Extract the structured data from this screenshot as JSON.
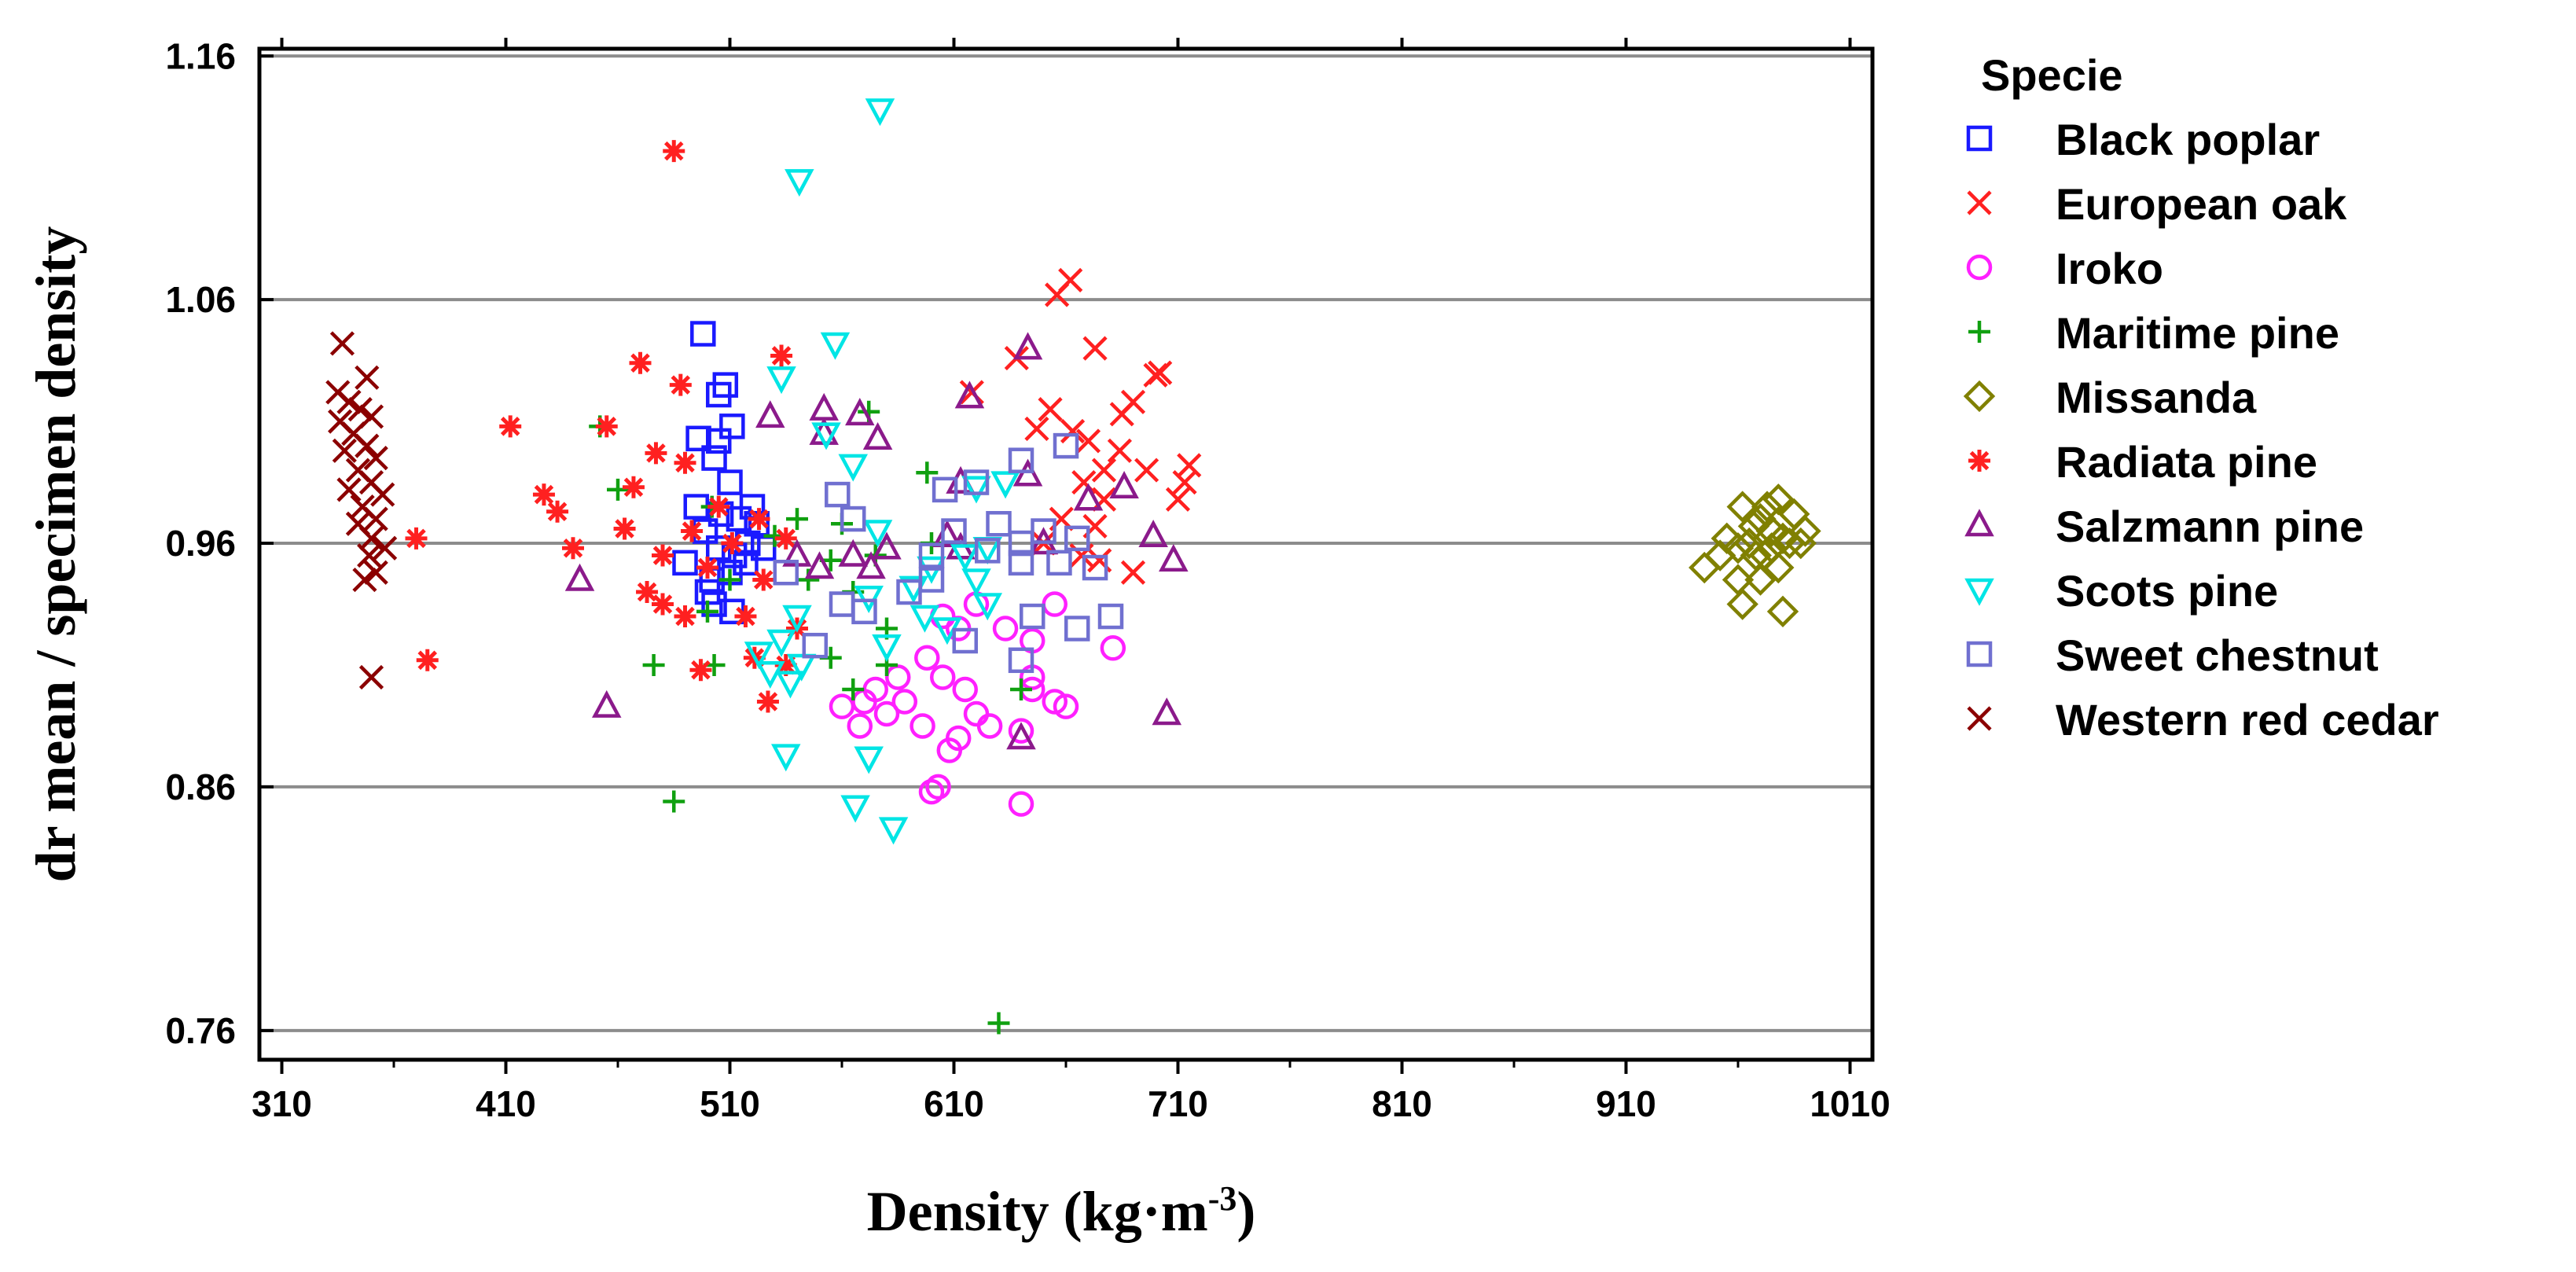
{
  "chart_data": {
    "type": "scatter",
    "title": "",
    "xlabel": "Density (kg·m",
    "xlabel_superscript": "-3",
    "xlabel_close": ")",
    "ylabel": "dr mean / specimen density",
    "xlim": [
      300,
      1020
    ],
    "ylim": [
      0.748,
      1.163
    ],
    "x_ticks": [
      310,
      410,
      510,
      610,
      710,
      810,
      910,
      1010
    ],
    "y_ticks": [
      0.76,
      0.86,
      0.96,
      1.06,
      1.16
    ],
    "x_tick_labels": [
      "310",
      "410",
      "510",
      "610",
      "710",
      "810",
      "910",
      "1010"
    ],
    "y_tick_labels": [
      "0.76",
      "0.86",
      "0.96",
      "1.06",
      "1.16"
    ],
    "horizontal_grid": true,
    "legend_title": "Specie",
    "legend_position": "right",
    "series": [
      {
        "name": "Black poplar",
        "marker": "square",
        "color": "#1a1aff",
        "points": [
          [
            498,
            1.046
          ],
          [
            505,
            1.021
          ],
          [
            508,
            1.025
          ],
          [
            496,
            1.003
          ],
          [
            511,
            1.008
          ],
          [
            505,
            1.002
          ],
          [
            503,
            0.995
          ],
          [
            510,
            0.985
          ],
          [
            495,
            0.975
          ],
          [
            506,
            0.972
          ],
          [
            514,
            0.97
          ],
          [
            520,
            0.975
          ],
          [
            499,
            0.965
          ],
          [
            505,
            0.958
          ],
          [
            512,
            0.955
          ],
          [
            518,
            0.96
          ],
          [
            522,
            0.968
          ],
          [
            490,
            0.952
          ],
          [
            502,
            0.945
          ],
          [
            510,
            0.948
          ],
          [
            517,
            0.952
          ],
          [
            525,
            0.958
          ],
          [
            503,
            0.935
          ],
          [
            511,
            0.932
          ],
          [
            500,
            0.94
          ]
        ]
      },
      {
        "name": "European oak",
        "marker": "x",
        "color": "#ff2020",
        "points": [
          [
            662,
            1.068
          ],
          [
            656,
            1.062
          ],
          [
            673,
            1.04
          ],
          [
            638,
            1.036
          ],
          [
            702,
            1.03
          ],
          [
            700,
            1.029
          ],
          [
            618,
            1.022
          ],
          [
            690,
            1.018
          ],
          [
            685,
            1.013
          ],
          [
            653,
            1.015
          ],
          [
            647,
            1.007
          ],
          [
            663,
            1.006
          ],
          [
            670,
            1.002
          ],
          [
            684,
            0.998
          ],
          [
            677,
            0.99
          ],
          [
            696,
            0.99
          ],
          [
            715,
            0.992
          ],
          [
            713,
            0.985
          ],
          [
            710,
            0.978
          ],
          [
            668,
            0.985
          ],
          [
            677,
            0.978
          ],
          [
            658,
            0.97
          ],
          [
            673,
            0.967
          ],
          [
            650,
            0.96
          ],
          [
            675,
            0.953
          ],
          [
            690,
            0.948
          ],
          [
            667,
            0.955
          ]
        ]
      },
      {
        "name": "Iroko",
        "marker": "circle",
        "color": "#ff20ff",
        "points": [
          [
            605,
            0.93
          ],
          [
            620,
            0.935
          ],
          [
            655,
            0.935
          ],
          [
            612,
            0.925
          ],
          [
            633,
            0.925
          ],
          [
            645,
            0.92
          ],
          [
            681,
            0.917
          ],
          [
            598,
            0.913
          ],
          [
            605,
            0.905
          ],
          [
            645,
            0.905
          ],
          [
            615,
            0.9
          ],
          [
            585,
            0.905
          ],
          [
            575,
            0.9
          ],
          [
            570,
            0.895
          ],
          [
            580,
            0.89
          ],
          [
            588,
            0.895
          ],
          [
            560,
            0.893
          ],
          [
            568,
            0.885
          ],
          [
            596,
            0.885
          ],
          [
            620,
            0.89
          ],
          [
            626,
            0.885
          ],
          [
            640,
            0.883
          ],
          [
            655,
            0.895
          ],
          [
            660,
            0.893
          ],
          [
            645,
            0.9
          ],
          [
            608,
            0.875
          ],
          [
            612,
            0.88
          ],
          [
            603,
            0.86
          ],
          [
            600,
            0.858
          ],
          [
            640,
            0.853
          ]
        ]
      },
      {
        "name": "Maritime pine",
        "marker": "plus",
        "color": "#10a010",
        "points": [
          [
            452,
            1.008
          ],
          [
            572,
            1.014
          ],
          [
            598,
            0.989
          ],
          [
            460,
            0.982
          ],
          [
            502,
            0.975
          ],
          [
            540,
            0.97
          ],
          [
            560,
            0.968
          ],
          [
            530,
            0.963
          ],
          [
            600,
            0.96
          ],
          [
            575,
            0.955
          ],
          [
            555,
            0.953
          ],
          [
            510,
            0.945
          ],
          [
            545,
            0.945
          ],
          [
            565,
            0.94
          ],
          [
            500,
            0.932
          ],
          [
            580,
            0.925
          ],
          [
            476,
            0.91
          ],
          [
            503,
            0.91
          ],
          [
            580,
            0.91
          ],
          [
            555,
            0.913
          ],
          [
            565,
            0.9
          ],
          [
            640,
            0.9
          ],
          [
            485,
            0.854
          ],
          [
            630,
            0.763
          ]
        ]
      },
      {
        "name": "Missanda",
        "marker": "diamond",
        "color": "#808000",
        "points": [
          [
            945,
            0.95
          ],
          [
            962,
            0.975
          ],
          [
            970,
            0.97
          ],
          [
            973,
            0.975
          ],
          [
            978,
            0.978
          ],
          [
            985,
            0.972
          ],
          [
            990,
            0.965
          ],
          [
            980,
            0.962
          ],
          [
            975,
            0.958
          ],
          [
            968,
            0.955
          ],
          [
            960,
            0.958
          ],
          [
            955,
            0.962
          ],
          [
            965,
            0.96
          ],
          [
            972,
            0.955
          ],
          [
            978,
            0.95
          ],
          [
            970,
            0.945
          ],
          [
            960,
            0.945
          ],
          [
            952,
            0.955
          ],
          [
            983,
            0.96
          ],
          [
            988,
            0.96
          ],
          [
            962,
            0.935
          ],
          [
            980,
            0.932
          ],
          [
            975,
            0.965
          ],
          [
            967,
            0.967
          ]
        ]
      },
      {
        "name": "Radiata pine",
        "marker": "asterisk",
        "color": "#ff2020",
        "points": [
          [
            485,
            1.121
          ],
          [
            533,
            1.037
          ],
          [
            470,
            1.034
          ],
          [
            488,
            1.025
          ],
          [
            412,
            1.008
          ],
          [
            455,
            1.008
          ],
          [
            477,
            0.997
          ],
          [
            490,
            0.993
          ],
          [
            427,
            0.98
          ],
          [
            467,
            0.983
          ],
          [
            433,
            0.973
          ],
          [
            505,
            0.975
          ],
          [
            523,
            0.97
          ],
          [
            535,
            0.962
          ],
          [
            370,
            0.962
          ],
          [
            463,
            0.966
          ],
          [
            493,
            0.965
          ],
          [
            511,
            0.96
          ],
          [
            440,
            0.958
          ],
          [
            480,
            0.955
          ],
          [
            500,
            0.95
          ],
          [
            525,
            0.945
          ],
          [
            473,
            0.94
          ],
          [
            480,
            0.935
          ],
          [
            490,
            0.93
          ],
          [
            517,
            0.93
          ],
          [
            540,
            0.925
          ],
          [
            375,
            0.912
          ],
          [
            497,
            0.908
          ],
          [
            521,
            0.913
          ],
          [
            535,
            0.91
          ],
          [
            527,
            0.895
          ]
        ]
      },
      {
        "name": "Salzmann pine",
        "marker": "triangle",
        "color": "#8b1a8b",
        "points": [
          [
            643,
            1.04
          ],
          [
            617,
            1.02
          ],
          [
            528,
            1.012
          ],
          [
            552,
            1.015
          ],
          [
            568,
            1.013
          ],
          [
            576,
            1.003
          ],
          [
            552,
            1.005
          ],
          [
            613,
            0.985
          ],
          [
            643,
            0.988
          ],
          [
            686,
            0.983
          ],
          [
            670,
            0.978
          ],
          [
            607,
            0.963
          ],
          [
            613,
            0.958
          ],
          [
            699,
            0.963
          ],
          [
            708,
            0.953
          ],
          [
            650,
            0.96
          ],
          [
            580,
            0.958
          ],
          [
            565,
            0.955
          ],
          [
            540,
            0.955
          ],
          [
            443,
            0.945
          ],
          [
            550,
            0.95
          ],
          [
            573,
            0.95
          ],
          [
            455,
            0.893
          ],
          [
            705,
            0.89
          ],
          [
            640,
            0.88
          ]
        ]
      },
      {
        "name": "Scots pine",
        "marker": "triangle-down",
        "color": "#00e5e5",
        "points": [
          [
            577,
            1.138
          ],
          [
            541,
            1.109
          ],
          [
            557,
            1.042
          ],
          [
            533,
            1.028
          ],
          [
            553,
            1.005
          ],
          [
            565,
            0.992
          ],
          [
            633,
            0.985
          ],
          [
            620,
            0.983
          ],
          [
            576,
            0.965
          ],
          [
            625,
            0.958
          ],
          [
            615,
            0.955
          ],
          [
            600,
            0.95
          ],
          [
            620,
            0.945
          ],
          [
            592,
            0.942
          ],
          [
            572,
            0.938
          ],
          [
            625,
            0.935
          ],
          [
            607,
            0.925
          ],
          [
            597,
            0.93
          ],
          [
            540,
            0.93
          ],
          [
            533,
            0.92
          ],
          [
            523,
            0.915
          ],
          [
            528,
            0.907
          ],
          [
            537,
            0.903
          ],
          [
            542,
            0.91
          ],
          [
            580,
            0.918
          ],
          [
            535,
            0.873
          ],
          [
            572,
            0.872
          ],
          [
            566,
            0.852
          ],
          [
            583,
            0.843
          ]
        ]
      },
      {
        "name": "Sweet chestnut",
        "marker": "square",
        "color": "#7070d0",
        "points": [
          [
            660,
            1.0
          ],
          [
            640,
            0.994
          ],
          [
            620,
            0.985
          ],
          [
            606,
            0.982
          ],
          [
            558,
            0.98
          ],
          [
            565,
            0.97
          ],
          [
            630,
            0.968
          ],
          [
            610,
            0.965
          ],
          [
            650,
            0.965
          ],
          [
            665,
            0.962
          ],
          [
            640,
            0.96
          ],
          [
            625,
            0.957
          ],
          [
            600,
            0.955
          ],
          [
            640,
            0.952
          ],
          [
            657,
            0.952
          ],
          [
            673,
            0.95
          ],
          [
            535,
            0.948
          ],
          [
            560,
            0.935
          ],
          [
            570,
            0.932
          ],
          [
            590,
            0.94
          ],
          [
            600,
            0.945
          ],
          [
            645,
            0.93
          ],
          [
            665,
            0.925
          ],
          [
            680,
            0.93
          ],
          [
            615,
            0.92
          ],
          [
            548,
            0.918
          ],
          [
            640,
            0.912
          ]
        ]
      },
      {
        "name": "Western red cedar",
        "marker": "x",
        "color": "#8b0000",
        "points": [
          [
            337,
            1.042
          ],
          [
            348,
            1.028
          ],
          [
            335,
            1.022
          ],
          [
            340,
            1.018
          ],
          [
            345,
            1.015
          ],
          [
            350,
            1.012
          ],
          [
            336,
            1.01
          ],
          [
            342,
            1.005
          ],
          [
            348,
            1.0
          ],
          [
            352,
            0.995
          ],
          [
            338,
            0.998
          ],
          [
            344,
            0.99
          ],
          [
            350,
            0.985
          ],
          [
            355,
            0.98
          ],
          [
            340,
            0.982
          ],
          [
            346,
            0.975
          ],
          [
            352,
            0.97
          ],
          [
            344,
            0.968
          ],
          [
            350,
            0.962
          ],
          [
            356,
            0.958
          ],
          [
            349,
            0.955
          ],
          [
            352,
            0.948
          ],
          [
            347,
            0.945
          ],
          [
            350,
            0.905
          ]
        ]
      }
    ]
  }
}
